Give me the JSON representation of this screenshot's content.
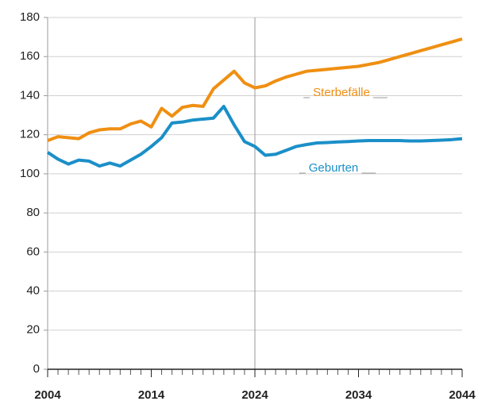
{
  "chart_data": {
    "type": "line",
    "x": [
      2004,
      2005,
      2006,
      2007,
      2008,
      2009,
      2010,
      2011,
      2012,
      2013,
      2014,
      2015,
      2016,
      2017,
      2018,
      2019,
      2020,
      2021,
      2022,
      2023,
      2024,
      2025,
      2026,
      2027,
      2028,
      2029,
      2030,
      2031,
      2032,
      2033,
      2034,
      2035,
      2036,
      2037,
      2038,
      2039,
      2040,
      2041,
      2042,
      2043,
      2044
    ],
    "series": [
      {
        "name": "Sterbefälle",
        "color": "#ef8f12",
        "values": [
          117,
          119,
          118.5,
          118,
          121,
          122.5,
          123,
          123,
          125.5,
          127,
          124,
          133.5,
          129.5,
          134,
          135,
          134.5,
          143.5,
          148,
          152.5,
          146.5,
          144,
          145,
          147.5,
          149.5,
          151,
          152.5,
          153,
          153.5,
          154,
          154.5,
          155,
          156,
          157,
          158.5,
          160,
          161.5,
          163,
          164.5,
          166,
          167.5,
          169
        ]
      },
      {
        "name": "Geburten",
        "color": "#1b8fc8",
        "values": [
          111,
          107.5,
          105,
          107,
          106.5,
          104,
          105.5,
          104,
          107,
          110,
          114,
          118.5,
          126,
          126.5,
          127.5,
          128,
          128.5,
          134.5,
          125,
          116.5,
          114,
          109.5,
          110,
          112,
          114,
          115,
          115.8,
          116,
          116.3,
          116.5,
          116.8,
          117,
          117,
          117,
          117,
          116.8,
          116.8,
          117,
          117.2,
          117.5,
          118
        ]
      }
    ],
    "xlim": [
      2004,
      2044
    ],
    "xticks": [
      2004,
      2014,
      2024,
      2034,
      2044
    ],
    "ylim": [
      0,
      180
    ],
    "yticks": [
      0,
      20,
      40,
      60,
      80,
      100,
      120,
      140,
      160,
      180
    ],
    "grid": true,
    "vline": 2024
  }
}
